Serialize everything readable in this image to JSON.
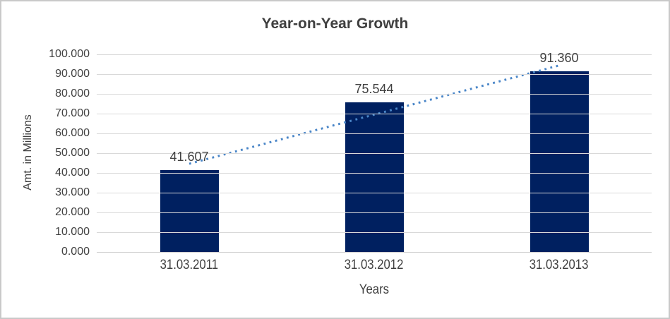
{
  "chart_data": {
    "type": "bar",
    "title": "Year-on-Year Growth",
    "categories": [
      "31.03.2011",
      "31.03.2012",
      "31.03.2013"
    ],
    "values": [
      41.607,
      75.544,
      91.36
    ],
    "data_labels": [
      "41.607",
      "75.544",
      "91.360"
    ],
    "xlabel": "Years",
    "ylabel": "Amt. in Millions",
    "ylim": [
      0,
      100
    ],
    "ytick_step": 10,
    "ytick_labels": [
      "0.000",
      "10.000",
      "20.000",
      "30.000",
      "40.000",
      "50.000",
      "60.000",
      "70.000",
      "80.000",
      "90.000",
      "100.000"
    ],
    "grid": true,
    "legend": false,
    "bar_color": "#002060",
    "trendline": {
      "type": "linear",
      "style": "dotted",
      "color": "#4a86c8"
    },
    "colors": {
      "gridline": "#d9d9d9",
      "axis_text": "#404040",
      "title_text": "#3f3f3f",
      "border": "#c9c9c9",
      "background": "#ffffff"
    }
  }
}
